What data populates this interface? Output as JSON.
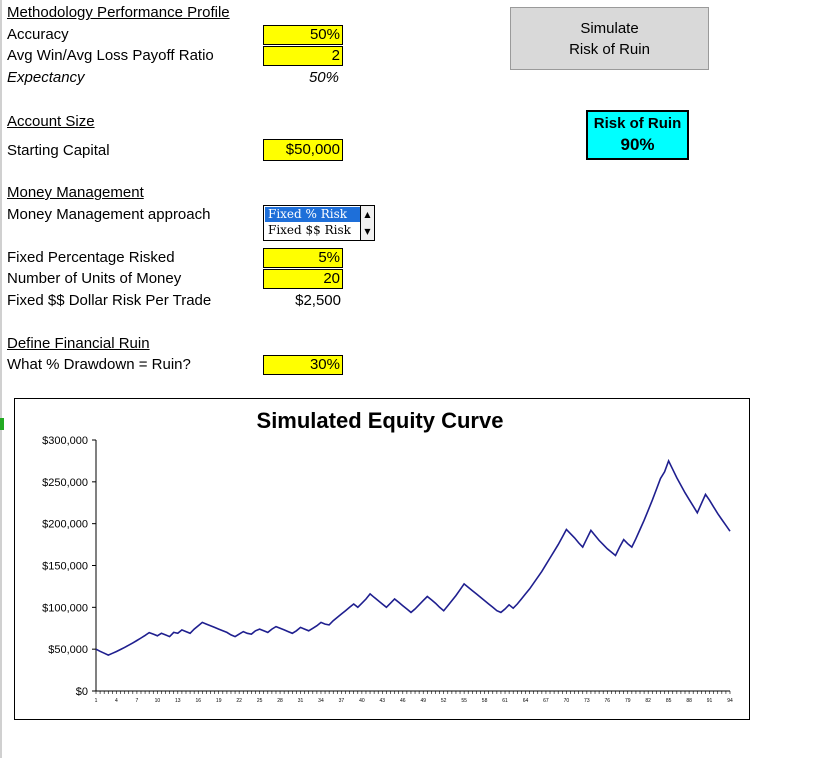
{
  "methodology": {
    "header": "Methodology Performance Profile",
    "accuracy_label": "Accuracy",
    "accuracy_value": "50%",
    "payoff_label": "Avg Win/Avg Loss Payoff Ratio",
    "payoff_value": "2",
    "expectancy_label": "Expectancy",
    "expectancy_value": "50%"
  },
  "account": {
    "header": "Account Size",
    "starting_capital_label": "Starting Capital",
    "starting_capital_value": "$50,000"
  },
  "money_management": {
    "header": "Money Management",
    "approach_label": "Money Management approach",
    "options": [
      "Fixed % Risk",
      "Fixed $$ Risk"
    ],
    "selected_option": "Fixed % Risk",
    "fixed_pct_label": "Fixed Percentage Risked",
    "fixed_pct_value": "5%",
    "units_label": "Number of Units of Money",
    "units_value": "20",
    "dollar_risk_label": "Fixed $$ Dollar Risk Per Trade",
    "dollar_risk_value": "$2,500"
  },
  "ruin": {
    "header": "Define Financial Ruin",
    "drawdown_label": "What % Drawdown = Ruin?",
    "drawdown_value": "30%"
  },
  "simulate_button": {
    "line1": "Simulate",
    "line2": "Risk of Ruin"
  },
  "risk_of_ruin": {
    "label": "Risk of Ruin",
    "value": "90%"
  },
  "colors": {
    "input_fill": "#ffff00",
    "ruin_fill": "#00ffff",
    "line": "#1f1f8f",
    "selected": "#1e6fd9"
  },
  "chart_data": {
    "type": "line",
    "title": "Simulated Equity Curve",
    "xlabel": "",
    "ylabel": "",
    "ylim": [
      0,
      300000
    ],
    "yticks": [
      "$0",
      "$50,000",
      "$100,000",
      "$150,000",
      "$200,000",
      "$250,000",
      "$300,000"
    ],
    "x_tick_labels": [
      "1",
      "4",
      "7",
      "10",
      "13",
      "16",
      "19",
      "22",
      "25",
      "28",
      "31",
      "34",
      "37",
      "40",
      "43",
      "46",
      "49",
      "52",
      "55",
      "58",
      "61",
      "64",
      "67",
      "70",
      "73",
      "76",
      "79",
      "82",
      "85",
      "88",
      "91",
      "94"
    ],
    "grid": false,
    "series": [
      {
        "values": [
          50000,
          47500,
          45125,
          42869,
          45012,
          47263,
          49626,
          52107,
          54712,
          57448,
          60320,
          63336,
          66503,
          69828,
          68000,
          66000,
          69000,
          67000,
          65000,
          70000,
          69000,
          73000,
          71000,
          69000,
          74000,
          78000,
          82000,
          80000,
          78000,
          76000,
          74000,
          72000,
          70000,
          67000,
          65000,
          68000,
          71000,
          69000,
          68000,
          72000,
          74000,
          72000,
          70000,
          74000,
          77000,
          75000,
          73000,
          71000,
          69000,
          72000,
          76000,
          74000,
          72000,
          75000,
          78000,
          82000,
          80000,
          79000,
          84000,
          88000,
          92000,
          96000,
          100000,
          104000,
          100000,
          105000,
          110000,
          116000,
          112000,
          108000,
          104000,
          100000,
          105000,
          110000,
          106000,
          102000,
          98000,
          94000,
          98000,
          103000,
          108000,
          113000,
          109000,
          105000,
          100000,
          96000,
          102000,
          108000,
          114000,
          121000,
          128000,
          124000,
          120000,
          116000,
          112000,
          108000,
          104000,
          100000,
          96000,
          94000,
          98000,
          103000,
          99000,
          104000,
          110000,
          116000,
          122000,
          129000,
          136000,
          143000,
          151000,
          159000,
          167000,
          175000,
          184000,
          193000,
          188000,
          183000,
          177000,
          172000,
          182000,
          192000,
          186000,
          180000,
          175000,
          170000,
          166000,
          162000,
          172000,
          181000,
          176000,
          172000,
          182000,
          193000,
          204000,
          216000,
          228000,
          241000,
          254000,
          262000,
          275000,
          265000,
          255000,
          246000,
          237000,
          229000,
          221000,
          213000,
          224000,
          235000,
          228000,
          220000,
          212000,
          205000,
          198000,
          191000
        ]
      }
    ]
  }
}
